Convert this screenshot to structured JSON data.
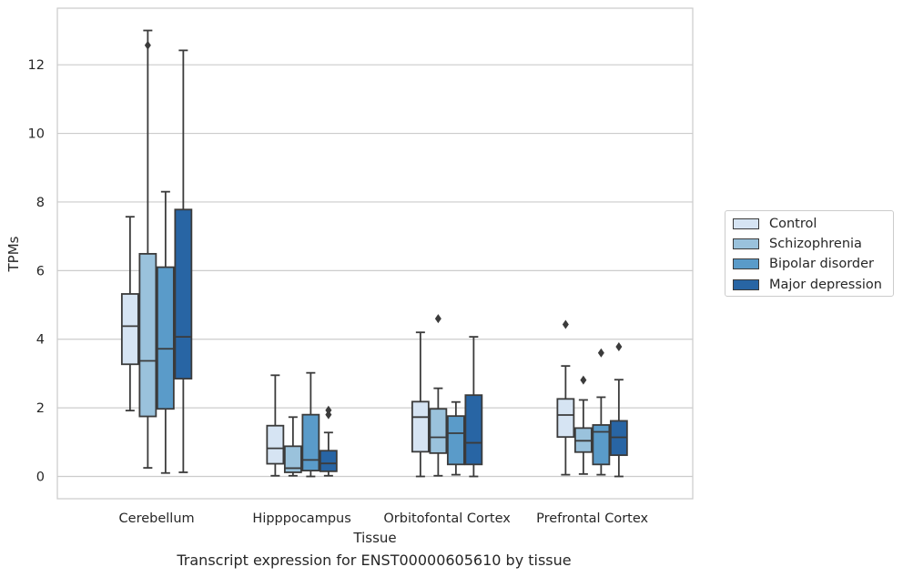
{
  "chart_data": {
    "type": "box",
    "xlabel": "Tissue",
    "ylabel": "TPMs",
    "caption": "Transcript expression for ENST00000605610 by tissue",
    "ylim": [
      -0.65,
      13.65
    ],
    "yticks": [
      0,
      2,
      4,
      6,
      8,
      10,
      12
    ],
    "grid": true,
    "legend_position": "right",
    "categories": [
      "Cerebellum",
      "Hipppocampus",
      "Orbitofontal Cortex",
      "Prefrontal Cortex"
    ],
    "series": [
      {
        "name": "Control",
        "color": "#d6e4f3",
        "boxes": [
          {
            "whisker_low": 1.92,
            "q1": 3.27,
            "median": 4.38,
            "q3": 5.32,
            "whisker_high": 7.57,
            "outliers": []
          },
          {
            "whisker_low": 0.02,
            "q1": 0.37,
            "median": 0.82,
            "q3": 1.48,
            "whisker_high": 2.95,
            "outliers": []
          },
          {
            "whisker_low": 0.0,
            "q1": 0.72,
            "median": 1.73,
            "q3": 2.18,
            "whisker_high": 4.2,
            "outliers": []
          },
          {
            "whisker_low": 0.05,
            "q1": 1.15,
            "median": 1.79,
            "q3": 2.26,
            "whisker_high": 3.22,
            "outliers": [
              4.43
            ]
          }
        ]
      },
      {
        "name": "Schizophrenia",
        "color": "#9ac2dc",
        "boxes": [
          {
            "whisker_low": 0.25,
            "q1": 1.75,
            "median": 3.37,
            "q3": 6.49,
            "whisker_high": 13.0,
            "outliers": [
              12.57
            ]
          },
          {
            "whisker_low": 0.02,
            "q1": 0.12,
            "median": 0.24,
            "q3": 0.88,
            "whisker_high": 1.73,
            "outliers": []
          },
          {
            "whisker_low": 0.02,
            "q1": 0.68,
            "median": 1.14,
            "q3": 1.97,
            "whisker_high": 2.57,
            "outliers": [
              4.6
            ]
          },
          {
            "whisker_low": 0.07,
            "q1": 0.71,
            "median": 1.04,
            "q3": 1.41,
            "whisker_high": 2.23,
            "outliers": [
              2.81
            ]
          }
        ]
      },
      {
        "name": "Bipolar disorder",
        "color": "#5a9bc9",
        "boxes": [
          {
            "whisker_low": 0.1,
            "q1": 1.97,
            "median": 3.72,
            "q3": 6.1,
            "whisker_high": 8.3,
            "outliers": []
          },
          {
            "whisker_low": 0.0,
            "q1": 0.17,
            "median": 0.48,
            "q3": 1.8,
            "whisker_high": 3.02,
            "outliers": []
          },
          {
            "whisker_low": 0.05,
            "q1": 0.35,
            "median": 1.26,
            "q3": 1.76,
            "whisker_high": 2.17,
            "outliers": []
          },
          {
            "whisker_low": 0.05,
            "q1": 0.35,
            "median": 1.3,
            "q3": 1.5,
            "whisker_high": 2.31,
            "outliers": [
              3.6
            ]
          }
        ]
      },
      {
        "name": "Major depression",
        "color": "#2865a4",
        "boxes": [
          {
            "whisker_low": 0.12,
            "q1": 2.85,
            "median": 4.07,
            "q3": 7.78,
            "whisker_high": 12.42,
            "outliers": []
          },
          {
            "whisker_low": 0.02,
            "q1": 0.15,
            "median": 0.38,
            "q3": 0.75,
            "whisker_high": 1.28,
            "outliers": [
              1.8,
              1.93
            ]
          },
          {
            "whisker_low": 0.0,
            "q1": 0.35,
            "median": 0.98,
            "q3": 2.37,
            "whisker_high": 4.07,
            "outliers": []
          },
          {
            "whisker_low": 0.0,
            "q1": 0.62,
            "median": 1.14,
            "q3": 1.62,
            "whisker_high": 2.82,
            "outliers": [
              3.78
            ]
          }
        ]
      }
    ]
  }
}
